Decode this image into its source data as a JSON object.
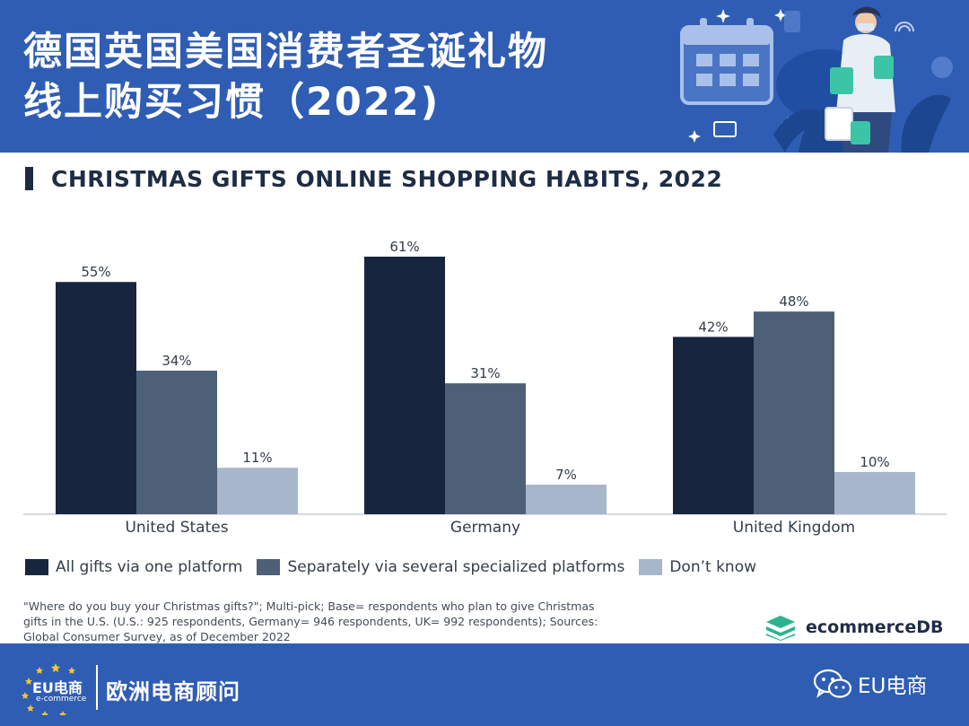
{
  "banner": {
    "title_line1": "德国英国美国消费者圣诞礼物",
    "title_line2": "线上购买习惯（2022)"
  },
  "chart_title": "CHRISTMAS GIFTS ONLINE SHOPPING HABITS, 2022",
  "chart_data": {
    "type": "bar",
    "title": "CHRISTMAS GIFTS ONLINE SHOPPING HABITS, 2022",
    "categories": [
      "United States",
      "Germany",
      "United Kingdom"
    ],
    "series": [
      {
        "name": "All gifts via one platform",
        "values": [
          55,
          61,
          42
        ],
        "labels": [
          "55%",
          "61%",
          "42%"
        ],
        "color": "#17253f"
      },
      {
        "name": "Separately via several specialized platforms",
        "values": [
          34,
          31,
          48
        ],
        "labels": [
          "34%",
          "31%",
          "48%"
        ],
        "color": "#4e6078"
      },
      {
        "name": "Don’t know",
        "values": [
          11,
          7,
          10
        ],
        "labels": [
          "11%",
          "7%",
          "10%"
        ],
        "color": "#a7b6cb"
      }
    ],
    "unit": "%",
    "ylim": [
      0,
      61
    ],
    "grid": false,
    "legend": "bottom-left"
  },
  "legend": {
    "item1": "All gifts via one platform",
    "item2": "Separately via several specialized platforms",
    "item3": "Don’t know"
  },
  "note": {
    "line1": "\"Where do you buy your Christmas gifts?\"; Multi-pick; Base= respondents who plan to give Christmas",
    "line2": "gifts in the U.S. (U.S.: 925 respondents, Germany= 946 respondents, UK= 992 respondents); Sources:",
    "line3": "Global Consumer Survey, as of December 2022"
  },
  "logo": {
    "text": "ecommerceDB",
    "icon": "ecommercedb-logo-icon"
  },
  "footer": {
    "brand_main": "EU电商",
    "brand_sub": "e-commerce",
    "name": "欧洲电商顾问",
    "wechat_label": "EU电商",
    "wechat_icon": "wechat-icon"
  },
  "colors": {
    "banner": "#2f5db3",
    "title_text": "#1e2d45"
  }
}
